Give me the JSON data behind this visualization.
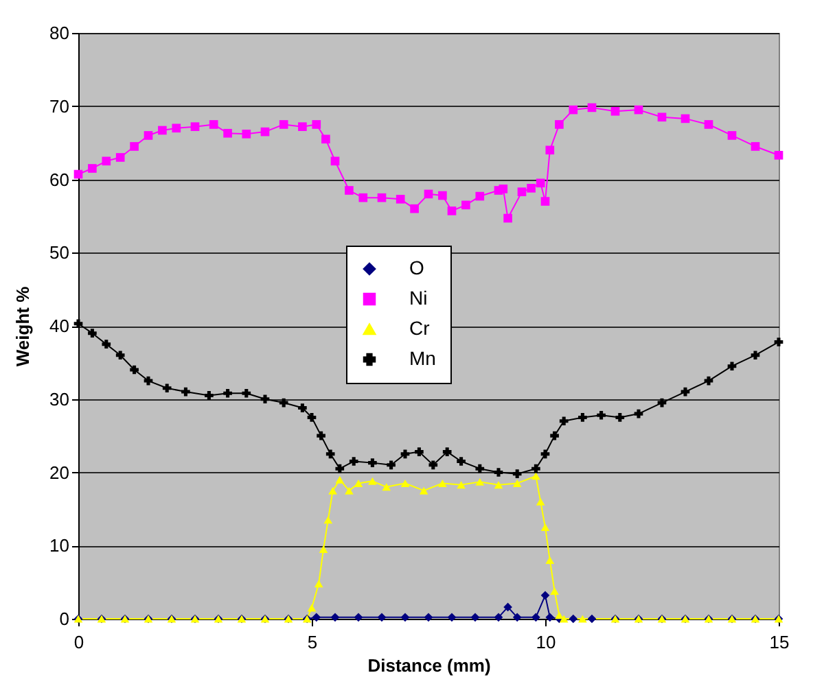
{
  "chart_data": {
    "type": "line",
    "xlabel": "Distance (mm)",
    "ylabel": "Weight %",
    "xlim": [
      0,
      15
    ],
    "xticks": [
      0,
      5,
      10,
      15
    ],
    "ylim": [
      0,
      80
    ],
    "yticks": [
      0,
      10,
      20,
      30,
      40,
      50,
      60,
      70,
      80
    ],
    "grid": "y",
    "legend": "top",
    "series": [
      {
        "name": "O",
        "color": "#000080",
        "marker": "diamond",
        "x": [
          0,
          0.5,
          1,
          1.5,
          2,
          2.5,
          3,
          3.5,
          4,
          4.5,
          4.9,
          5.1,
          5.5,
          6,
          6.5,
          7,
          7.5,
          8,
          8.5,
          9,
          9.2,
          9.4,
          9.8,
          10.0,
          10.1,
          10.3,
          10.6,
          11,
          11.5,
          12,
          12.5,
          13,
          13.5,
          14,
          14.5,
          15
        ],
        "values": [
          0,
          0,
          0,
          0,
          0,
          0,
          0,
          0,
          0,
          0,
          0,
          0.2,
          0.2,
          0.2,
          0.2,
          0.2,
          0.2,
          0.2,
          0.2,
          0.2,
          1.6,
          0.2,
          0.2,
          3.2,
          0.2,
          0,
          0,
          0,
          0,
          0,
          0,
          0,
          0,
          0,
          0,
          0
        ]
      },
      {
        "name": "Ni",
        "color": "#ff00ff",
        "marker": "square",
        "x": [
          0,
          0.3,
          0.6,
          0.9,
          1.2,
          1.5,
          1.8,
          2.1,
          2.5,
          2.9,
          3.2,
          3.6,
          4,
          4.4,
          4.8,
          5.1,
          5.3,
          5.5,
          5.8,
          6.1,
          6.5,
          6.9,
          7.2,
          7.5,
          7.8,
          8.0,
          8.3,
          8.6,
          9.0,
          9.1,
          9.2,
          9.5,
          9.7,
          9.9,
          10.0,
          10.1,
          10.3,
          10.6,
          11,
          11.5,
          12,
          12.5,
          13,
          13.5,
          14,
          14.5,
          15
        ],
        "values": [
          60.7,
          61.5,
          62.5,
          63,
          64.5,
          66,
          66.7,
          67,
          67.2,
          67.5,
          66.3,
          66.2,
          66.5,
          67.5,
          67.2,
          67.5,
          65.5,
          62.5,
          58.5,
          57.5,
          57.5,
          57.3,
          56,
          58,
          57.8,
          55.7,
          56.5,
          57.7,
          58.5,
          58.7,
          54.7,
          58.3,
          58.8,
          59.5,
          57,
          64,
          67.5,
          69.5,
          69.8,
          69.3,
          69.5,
          68.5,
          68.3,
          67.5,
          66,
          64.5,
          63.3
        ]
      },
      {
        "name": "Cr",
        "color": "#ffff00",
        "marker": "triangle",
        "x": [
          0,
          0.5,
          1,
          1.5,
          2,
          2.5,
          3,
          3.5,
          4,
          4.5,
          4.9,
          5.0,
          5.15,
          5.25,
          5.35,
          5.45,
          5.6,
          5.8,
          6.0,
          6.3,
          6.6,
          7,
          7.4,
          7.8,
          8.2,
          8.6,
          9,
          9.4,
          9.8,
          9.9,
          10.0,
          10.1,
          10.2,
          10.3,
          10.4,
          10.8,
          11.5,
          12,
          12.5,
          13,
          13.5,
          14,
          14.5,
          15
        ],
        "values": [
          0,
          0,
          0,
          0,
          0,
          0,
          0,
          0,
          0,
          0,
          0,
          1.5,
          4.8,
          9.5,
          13.5,
          17.5,
          19,
          17.5,
          18.5,
          18.8,
          18,
          18.5,
          17.5,
          18.5,
          18.3,
          18.7,
          18.3,
          18.5,
          19.5,
          16,
          12.5,
          8,
          3.8,
          0.5,
          0,
          0,
          0,
          0,
          0,
          0,
          0,
          0,
          0,
          0
        ]
      },
      {
        "name": "Mn",
        "color": "#000000",
        "marker": "cross",
        "x": [
          0,
          0.3,
          0.6,
          0.9,
          1.2,
          1.5,
          1.9,
          2.3,
          2.8,
          3.2,
          3.6,
          4.0,
          4.4,
          4.8,
          5.0,
          5.2,
          5.4,
          5.6,
          5.9,
          6.3,
          6.7,
          7.0,
          7.3,
          7.6,
          7.9,
          8.2,
          8.6,
          9.0,
          9.4,
          9.8,
          10.0,
          10.2,
          10.4,
          10.8,
          11.2,
          11.6,
          12,
          12.5,
          13,
          13.5,
          14,
          14.5,
          15
        ],
        "values": [
          40.3,
          39,
          37.5,
          36,
          34,
          32.5,
          31.5,
          31,
          30.5,
          30.8,
          30.8,
          30,
          29.5,
          28.8,
          27.5,
          25,
          22.5,
          20.5,
          21.5,
          21.3,
          21,
          22.5,
          22.8,
          21,
          22.8,
          21.5,
          20.5,
          20,
          19.8,
          20.5,
          22.5,
          25,
          27,
          27.5,
          27.8,
          27.5,
          28,
          29.5,
          31,
          32.5,
          34.5,
          36,
          37.8
        ]
      }
    ]
  }
}
